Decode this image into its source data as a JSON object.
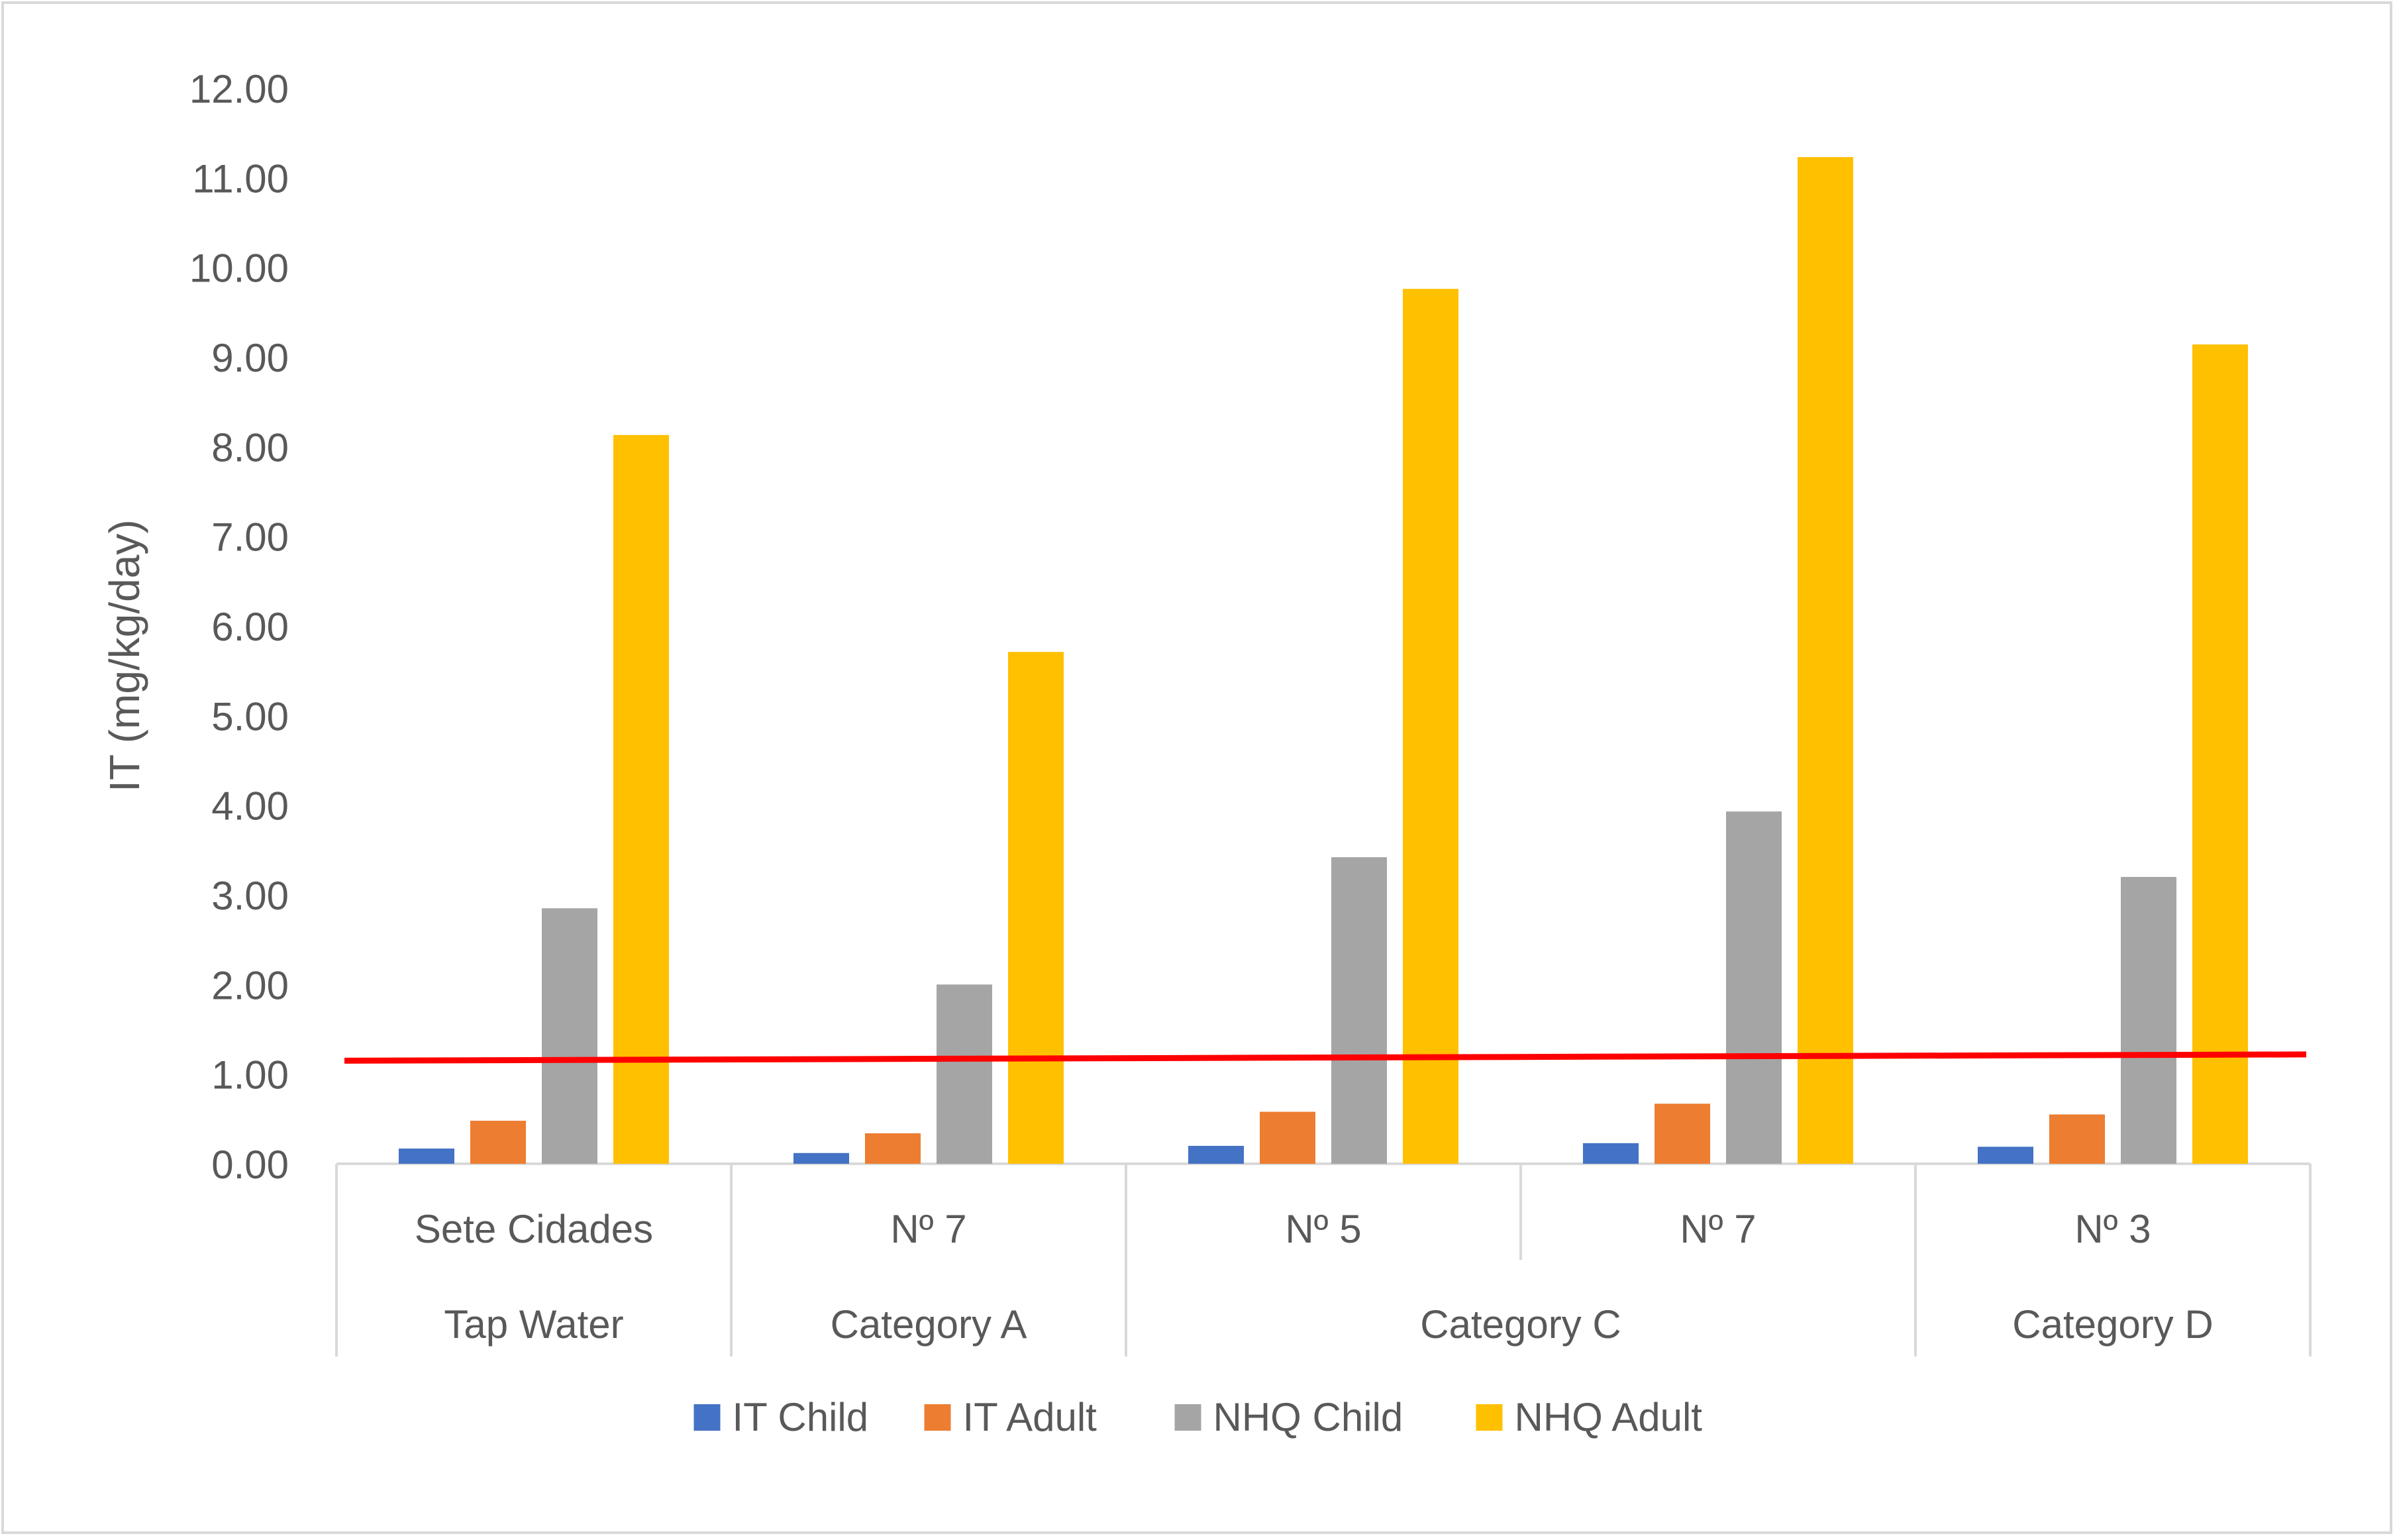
{
  "chart_data": {
    "type": "bar",
    "title": "",
    "xlabel": "",
    "ylabel": "IT (mg/kg/day)",
    "ylim": [
      0,
      12
    ],
    "ytick_step": 1,
    "ytick_labels": [
      "0.00",
      "1.00",
      "2.00",
      "3.00",
      "4.00",
      "5.00",
      "6.00",
      "7.00",
      "8.00",
      "9.00",
      "10.00",
      "11.00",
      "12.00"
    ],
    "grid": false,
    "legend_position": "bottom",
    "categories": [
      "Sete Cidades",
      "Nº 7",
      "Nº 5",
      "Nº 7",
      "Nº 3"
    ],
    "groups": [
      {
        "label": "Tap Water",
        "span": [
          0,
          0
        ]
      },
      {
        "label": "Category A",
        "span": [
          1,
          1
        ]
      },
      {
        "label": "Category C",
        "span": [
          2,
          3
        ]
      },
      {
        "label": "Category D",
        "span": [
          4,
          4
        ]
      }
    ],
    "series": [
      {
        "name": "IT Child",
        "color": "#4472C4",
        "values": [
          0.17,
          0.12,
          0.2,
          0.23,
          0.19
        ]
      },
      {
        "name": "IT Adult",
        "color": "#ED7D31",
        "values": [
          0.48,
          0.34,
          0.58,
          0.67,
          0.55
        ]
      },
      {
        "name": "NHQ Child",
        "color": "#A5A5A5",
        "values": [
          2.85,
          2.0,
          3.42,
          3.93,
          3.2
        ]
      },
      {
        "name": "NHQ Adult",
        "color": "#FFC000",
        "values": [
          8.13,
          5.71,
          9.76,
          11.23,
          9.14
        ]
      }
    ],
    "reference_line": {
      "color": "#FF0000",
      "y_start": 1.15,
      "y_end": 1.22
    }
  }
}
